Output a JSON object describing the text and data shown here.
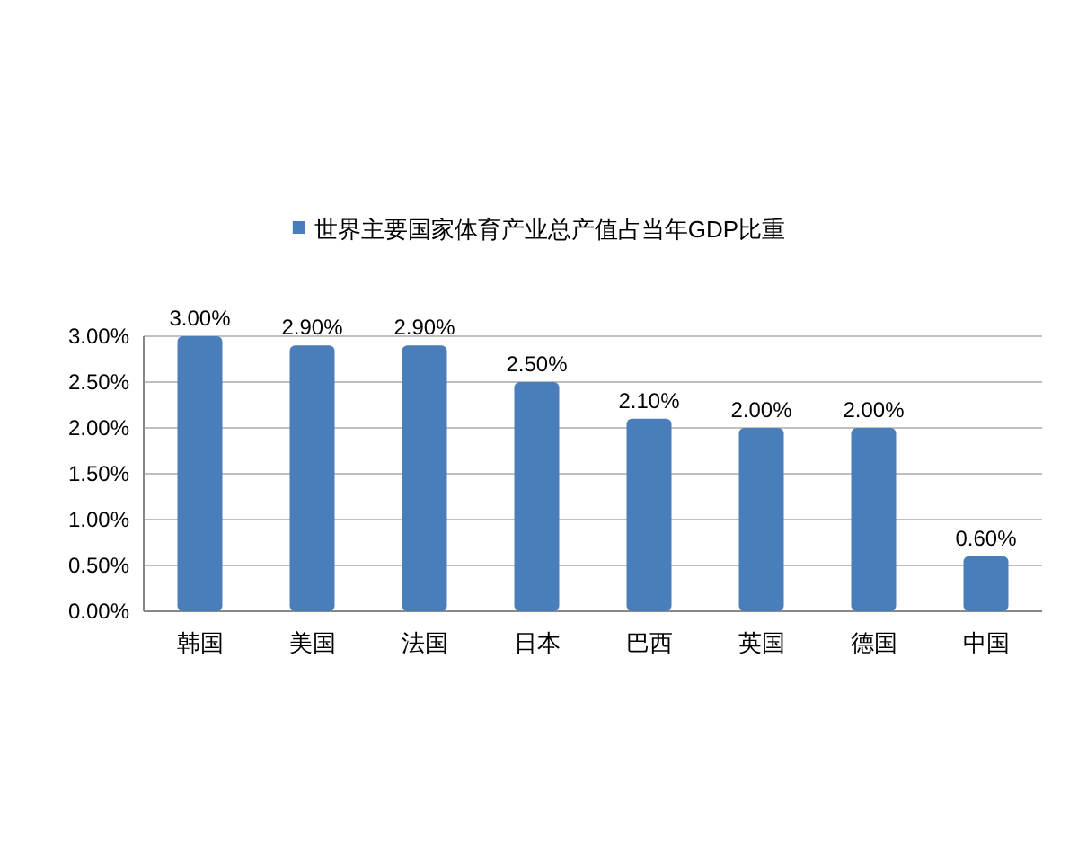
{
  "chart_data": {
    "type": "bar",
    "categories": [
      "韩国",
      "美国",
      "法国",
      "日本",
      "巴西",
      "英国",
      "德国",
      "中国"
    ],
    "series": [
      {
        "name": "世界主要国家体育产业总产值占当年GDP比重",
        "color": "#4a7ebb",
        "values": [
          3.0,
          2.9,
          2.9,
          2.5,
          2.1,
          2.0,
          2.0,
          0.6
        ],
        "value_labels": [
          "3.00%",
          "2.90%",
          "2.90%",
          "2.50%",
          "2.10%",
          "2.00%",
          "2.00%",
          "0.60%"
        ]
      }
    ],
    "ylim": [
      0,
      3
    ],
    "yticks": [
      {
        "value": 0,
        "label": "0.00%"
      },
      {
        "value": 0.5,
        "label": "0.50%"
      },
      {
        "value": 1,
        "label": "1.00%"
      },
      {
        "value": 1.5,
        "label": "1.50%"
      },
      {
        "value": 2,
        "label": "2.00%"
      },
      {
        "value": 2.5,
        "label": "2.50%"
      },
      {
        "value": 3,
        "label": "3.00%"
      }
    ],
    "grid": "y",
    "legend": "top"
  }
}
